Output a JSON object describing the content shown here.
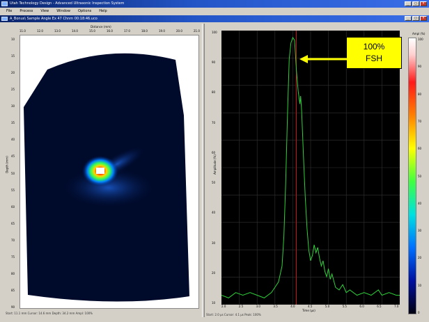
{
  "window": {
    "app_title": "Utah Technology Design - Advanced Ultrasonic Inspection System",
    "doc_title": "A_Bonus\\ Sample Angle Ex 47 Chnm 00:18:46.uco",
    "minimize_label": "_",
    "maximize_label": "□",
    "close_label": "×"
  },
  "menu": [
    "File",
    "Process",
    "View",
    "Window",
    "Options",
    "Help"
  ],
  "left_panel": {
    "top_axis_title": "Distance (mm)",
    "top_ticks": [
      "11.0",
      "12.0",
      "13.0",
      "14.0",
      "15.0",
      "16.0",
      "17.0",
      "18.0",
      "19.0",
      "20.0",
      "21.0"
    ],
    "left_axis_title": "Depth (mm)",
    "left_ticks": [
      "10",
      "15",
      "20",
      "25",
      "30",
      "35",
      "40",
      "45",
      "50",
      "55",
      "60",
      "65",
      "70",
      "75",
      "80",
      "85",
      "90"
    ],
    "status": "Start: 11.1 mm   Cursor: 14.6 mm   Depth: 34.2 mm   Ampl: 100%"
  },
  "right_panel": {
    "y_axis_title": "Amplitude (%)",
    "y_ticks": [
      "100",
      "90",
      "80",
      "70",
      "60",
      "50",
      "40",
      "30",
      "20",
      "10"
    ],
    "x_axis_title": "Time (µs)",
    "x_ticks": [
      "2.0",
      "2.5",
      "3.0",
      "3.5",
      "4.0",
      "4.5",
      "5.0",
      "5.5",
      "6.0",
      "6.5",
      "7.0"
    ],
    "status": "Start: 2.0 µs   Cursor: 4.1 µs   Peak: 100%"
  },
  "colorbar": {
    "title": "Ampl (%)",
    "ticks": [
      "100",
      "90",
      "80",
      "70",
      "60",
      "50",
      "40",
      "30",
      "20",
      "10",
      "0"
    ]
  },
  "callout": {
    "line1": "100%",
    "line2": "FSH"
  },
  "ascan": {
    "samples": [
      [
        2.0,
        3
      ],
      [
        2.2,
        2
      ],
      [
        2.4,
        4
      ],
      [
        2.6,
        3
      ],
      [
        2.8,
        4
      ],
      [
        3.0,
        3
      ],
      [
        3.2,
        2
      ],
      [
        3.4,
        4
      ],
      [
        3.5,
        6
      ],
      [
        3.6,
        8
      ],
      [
        3.7,
        14
      ],
      [
        3.75,
        25
      ],
      [
        3.8,
        45
      ],
      [
        3.85,
        70
      ],
      [
        3.9,
        92
      ],
      [
        3.95,
        98
      ],
      [
        4.0,
        100
      ],
      [
        4.05,
        99
      ],
      [
        4.1,
        88
      ],
      [
        4.15,
        80
      ],
      [
        4.2,
        75
      ],
      [
        4.22,
        78
      ],
      [
        4.25,
        72
      ],
      [
        4.3,
        55
      ],
      [
        4.35,
        40
      ],
      [
        4.4,
        28
      ],
      [
        4.45,
        20
      ],
      [
        4.5,
        16
      ],
      [
        4.55,
        18
      ],
      [
        4.6,
        22
      ],
      [
        4.65,
        19
      ],
      [
        4.7,
        21
      ],
      [
        4.75,
        17
      ],
      [
        4.8,
        14
      ],
      [
        4.85,
        16
      ],
      [
        4.9,
        12
      ],
      [
        4.95,
        10
      ],
      [
        5.0,
        13
      ],
      [
        5.05,
        9
      ],
      [
        5.1,
        11
      ],
      [
        5.2,
        6
      ],
      [
        5.3,
        5
      ],
      [
        5.4,
        7
      ],
      [
        5.5,
        4
      ],
      [
        5.6,
        5
      ],
      [
        5.7,
        4
      ],
      [
        5.8,
        3
      ],
      [
        6.0,
        4
      ],
      [
        6.2,
        3
      ],
      [
        6.4,
        5
      ],
      [
        6.5,
        3
      ],
      [
        6.7,
        4
      ],
      [
        6.9,
        3
      ],
      [
        7.0,
        3
      ]
    ],
    "gate_time": 4.1,
    "xlim": [
      2.0,
      7.0
    ],
    "ylim": [
      0,
      100
    ]
  }
}
